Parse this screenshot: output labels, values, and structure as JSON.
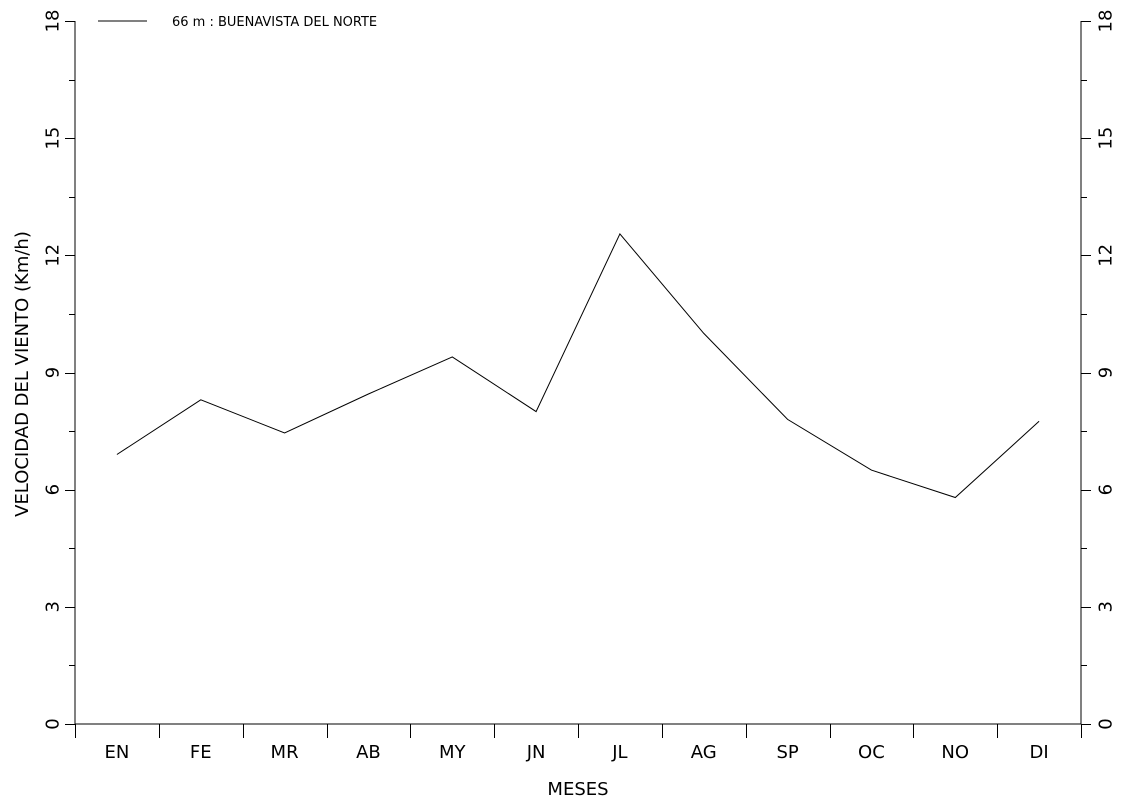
{
  "chart_data": {
    "type": "line",
    "title": "",
    "xlabel": "MESES",
    "ylabel": "VELOCIDAD DEL VIENTO (Km/h)",
    "categories": [
      "EN",
      "FE",
      "MR",
      "AB",
      "MY",
      "JN",
      "JL",
      "AG",
      "SP",
      "OC",
      "NO",
      "DI"
    ],
    "series": [
      {
        "name": "66 m : BUENAVISTA DEL NORTE",
        "values": [
          6.9,
          8.3,
          7.45,
          8.45,
          9.4,
          8.0,
          12.55,
          10.0,
          7.8,
          6.5,
          5.8,
          7.75
        ]
      }
    ],
    "ylim": [
      0,
      18
    ],
    "yticks": [
      0,
      3,
      6,
      9,
      12,
      15,
      18
    ],
    "grid": false,
    "secondary_y_axis": true,
    "legend_position": "top-left",
    "line_color": "#000000"
  }
}
